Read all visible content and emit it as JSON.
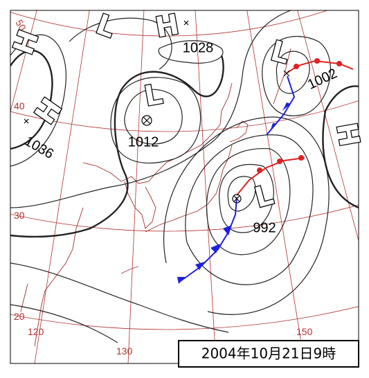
{
  "title": "2004年10月21日9時",
  "highs": [
    {
      "symbol": "H"
    },
    {
      "symbol": "H",
      "pressure": 1028
    },
    {
      "symbol": "H",
      "pressure": 1036
    },
    {
      "symbol": "H"
    }
  ],
  "lows": [
    {
      "symbol": "L"
    },
    {
      "symbol": "L",
      "pressure": 1012
    },
    {
      "symbol": "L",
      "pressure": 1002
    },
    {
      "symbol": "L",
      "pressure": 992
    }
  ],
  "grid_labels": {
    "latitude": [
      50,
      40,
      30,
      20
    ],
    "longitude": [
      120,
      130,
      150
    ]
  }
}
